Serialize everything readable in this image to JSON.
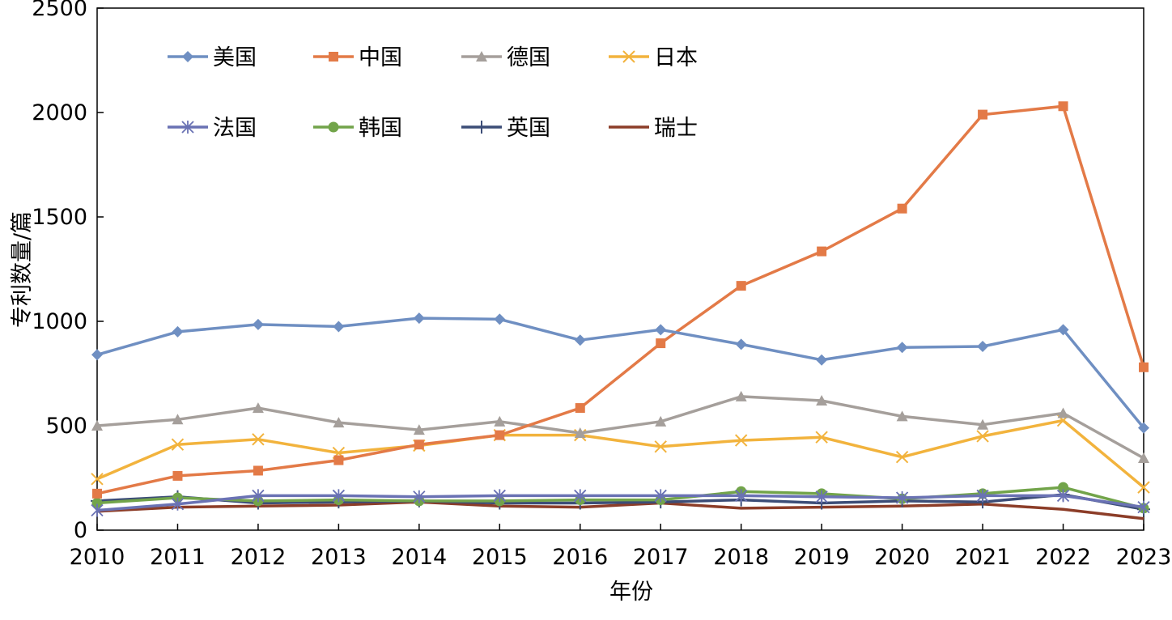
{
  "chart_data": {
    "type": "line",
    "title": "",
    "xlabel": "年份",
    "ylabel": "专利数量/篇",
    "ylim": [
      0,
      2500
    ],
    "yticks": [
      0,
      500,
      1000,
      1500,
      2000,
      2500
    ],
    "categories": [
      "2010",
      "2011",
      "2012",
      "2013",
      "2014",
      "2015",
      "2016",
      "2017",
      "2018",
      "2019",
      "2020",
      "2021",
      "2022",
      "2023"
    ],
    "legend_position": "top-left, inside plot, 4 columns",
    "series": [
      {
        "name": "美国",
        "color": "#6f8fc2",
        "marker": "diamond",
        "values": [
          840,
          950,
          985,
          975,
          1015,
          1010,
          910,
          960,
          890,
          815,
          875,
          880,
          960,
          490
        ]
      },
      {
        "name": "中国",
        "color": "#e37a47",
        "marker": "square",
        "values": [
          175,
          260,
          285,
          335,
          410,
          455,
          585,
          895,
          1170,
          1335,
          1540,
          1990,
          2030,
          780
        ]
      },
      {
        "name": "德国",
        "color": "#a59f9b",
        "marker": "triangle",
        "values": [
          500,
          530,
          585,
          515,
          480,
          520,
          465,
          520,
          640,
          620,
          545,
          505,
          560,
          345
        ]
      },
      {
        "name": "日本",
        "color": "#f2b33d",
        "marker": "x",
        "values": [
          245,
          410,
          435,
          370,
          405,
          455,
          455,
          400,
          430,
          445,
          350,
          450,
          525,
          205
        ]
      },
      {
        "name": "法国",
        "color": "#6a72b4",
        "marker": "star",
        "values": [
          95,
          125,
          165,
          165,
          160,
          165,
          165,
          165,
          165,
          160,
          155,
          165,
          165,
          110
        ]
      },
      {
        "name": "韩国",
        "color": "#72a44a",
        "marker": "circle",
        "values": [
          130,
          155,
          140,
          145,
          140,
          140,
          145,
          145,
          185,
          175,
          150,
          175,
          205,
          105
        ]
      },
      {
        "name": "英国",
        "color": "#3c4d77",
        "marker": "plus",
        "values": [
          140,
          160,
          130,
          135,
          140,
          130,
          130,
          135,
          145,
          130,
          140,
          135,
          170,
          100
        ]
      },
      {
        "name": "瑞士",
        "color": "#8c3d28",
        "marker": "none",
        "values": [
          90,
          110,
          115,
          120,
          135,
          115,
          110,
          130,
          105,
          110,
          115,
          125,
          100,
          55
        ]
      }
    ]
  }
}
